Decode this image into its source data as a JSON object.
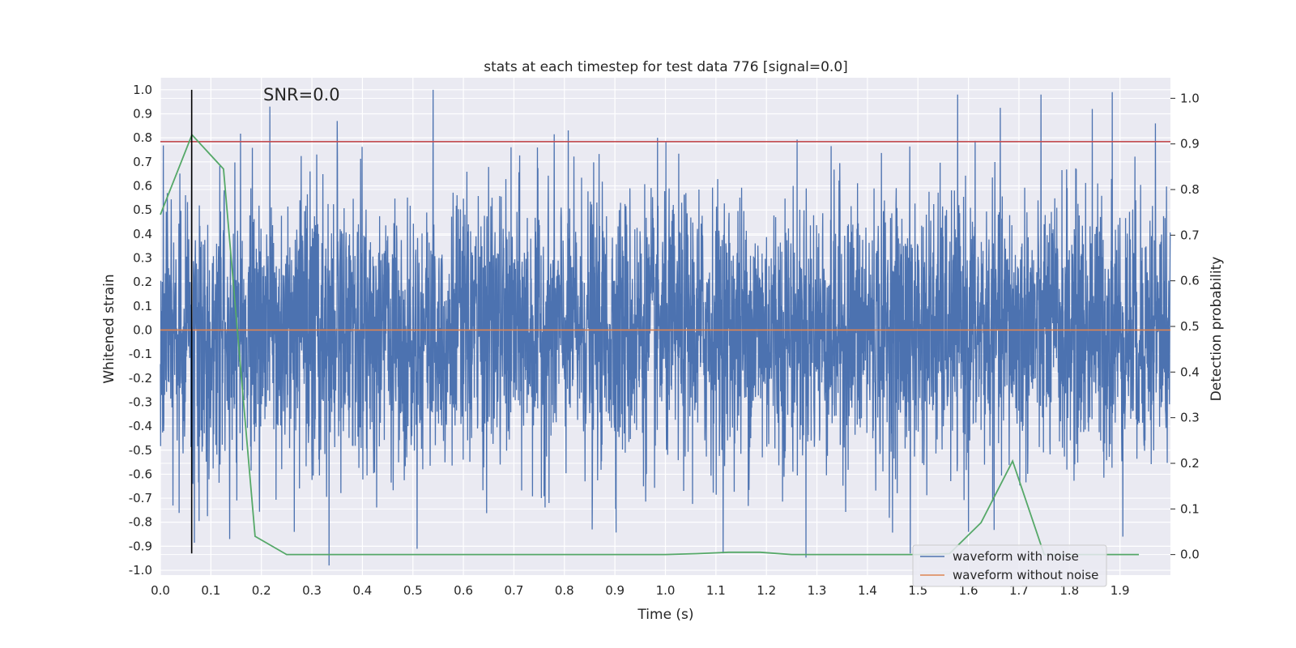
{
  "chart_data": {
    "type": "line",
    "title": "stats at each timestep for test data 776 [signal=0.0]",
    "xlabel": "Time (s)",
    "ylabel": "Whitened strain",
    "y2label": "Detection probability",
    "xlim": [
      0.0,
      2.0
    ],
    "ylim": [
      -1.02,
      1.05
    ],
    "y2lim": [
      -0.045,
      1.045
    ],
    "x_ticks": [
      "0.0",
      "0.1",
      "0.2",
      "0.3",
      "0.4",
      "0.5",
      "0.6",
      "0.7",
      "0.8",
      "0.9",
      "1.0",
      "1.1",
      "1.2",
      "1.3",
      "1.4",
      "1.5",
      "1.6",
      "1.7",
      "1.8",
      "1.9"
    ],
    "y_ticks": [
      "-1.0",
      "-0.9",
      "-0.8",
      "-0.7",
      "-0.6",
      "-0.5",
      "-0.4",
      "-0.3",
      "-0.2",
      "-0.1",
      "0.0",
      "0.1",
      "0.2",
      "0.3",
      "0.4",
      "0.5",
      "0.6",
      "0.7",
      "0.8",
      "0.9",
      "1.0"
    ],
    "y2_ticks": [
      "0.0",
      "0.1",
      "0.2",
      "0.3",
      "0.4",
      "0.5",
      "0.6",
      "0.7",
      "0.8",
      "0.9",
      "1.0"
    ],
    "grid": true,
    "annotation": "SNR=0.0",
    "legend_position": "lower-right",
    "series": [
      {
        "name": "waveform with noise",
        "color": "#4c72b0",
        "axis": "left",
        "sample_rate": 2048,
        "rng_seed": 776,
        "std": 0.28,
        "peaks": [
          {
            "x": 0.062,
            "y": 0.78
          },
          {
            "x": 0.217,
            "y": 0.93
          },
          {
            "x": 0.35,
            "y": 0.87
          },
          {
            "x": 0.54,
            "y": 1.0
          },
          {
            "x": 0.855,
            "y": -0.83
          },
          {
            "x": 1.485,
            "y": -0.93
          },
          {
            "x": 1.845,
            "y": 0.92
          },
          {
            "x": 1.885,
            "y": 0.99
          },
          {
            "x": 1.97,
            "y": 0.86
          },
          {
            "x": 0.137,
            "y": -0.87
          },
          {
            "x": 0.265,
            "y": -0.84
          },
          {
            "x": 1.6,
            "y": -0.84
          }
        ]
      },
      {
        "name": "waveform without noise",
        "color": "#dd8452",
        "axis": "left",
        "x": [
          0.0,
          2.0
        ],
        "y": [
          0.0,
          0.0
        ]
      },
      {
        "name": "",
        "color": "#55a868",
        "axis": "right",
        "x": [
          0.0,
          0.0625,
          0.125,
          0.1875,
          0.25,
          0.3125,
          0.375,
          0.4375,
          0.5,
          0.5625,
          0.625,
          0.6875,
          0.75,
          0.8125,
          0.875,
          0.9375,
          1.0,
          1.0625,
          1.125,
          1.1875,
          1.25,
          1.3125,
          1.375,
          1.4375,
          1.5,
          1.5625,
          1.625,
          1.6875,
          1.75,
          1.8125,
          1.875,
          1.9375
        ],
        "y": [
          0.745,
          0.92,
          0.845,
          0.04,
          0.0,
          0.0,
          0.0,
          0.0,
          0.0,
          0.0,
          0.0,
          0.0,
          0.0,
          0.0,
          0.0,
          0.0,
          0.0,
          0.002,
          0.005,
          0.005,
          0.0,
          0.0,
          0.0,
          0.0,
          0.0,
          0.002,
          0.07,
          0.205,
          0.0,
          0.0,
          0.0,
          0.0
        ]
      }
    ],
    "threshold": {
      "axis": "right",
      "y": 0.905,
      "color": "#c44e52"
    },
    "marker_line": {
      "x": 0.062,
      "y_from": -0.93,
      "y_to": 1.0,
      "color": "#000000"
    }
  }
}
